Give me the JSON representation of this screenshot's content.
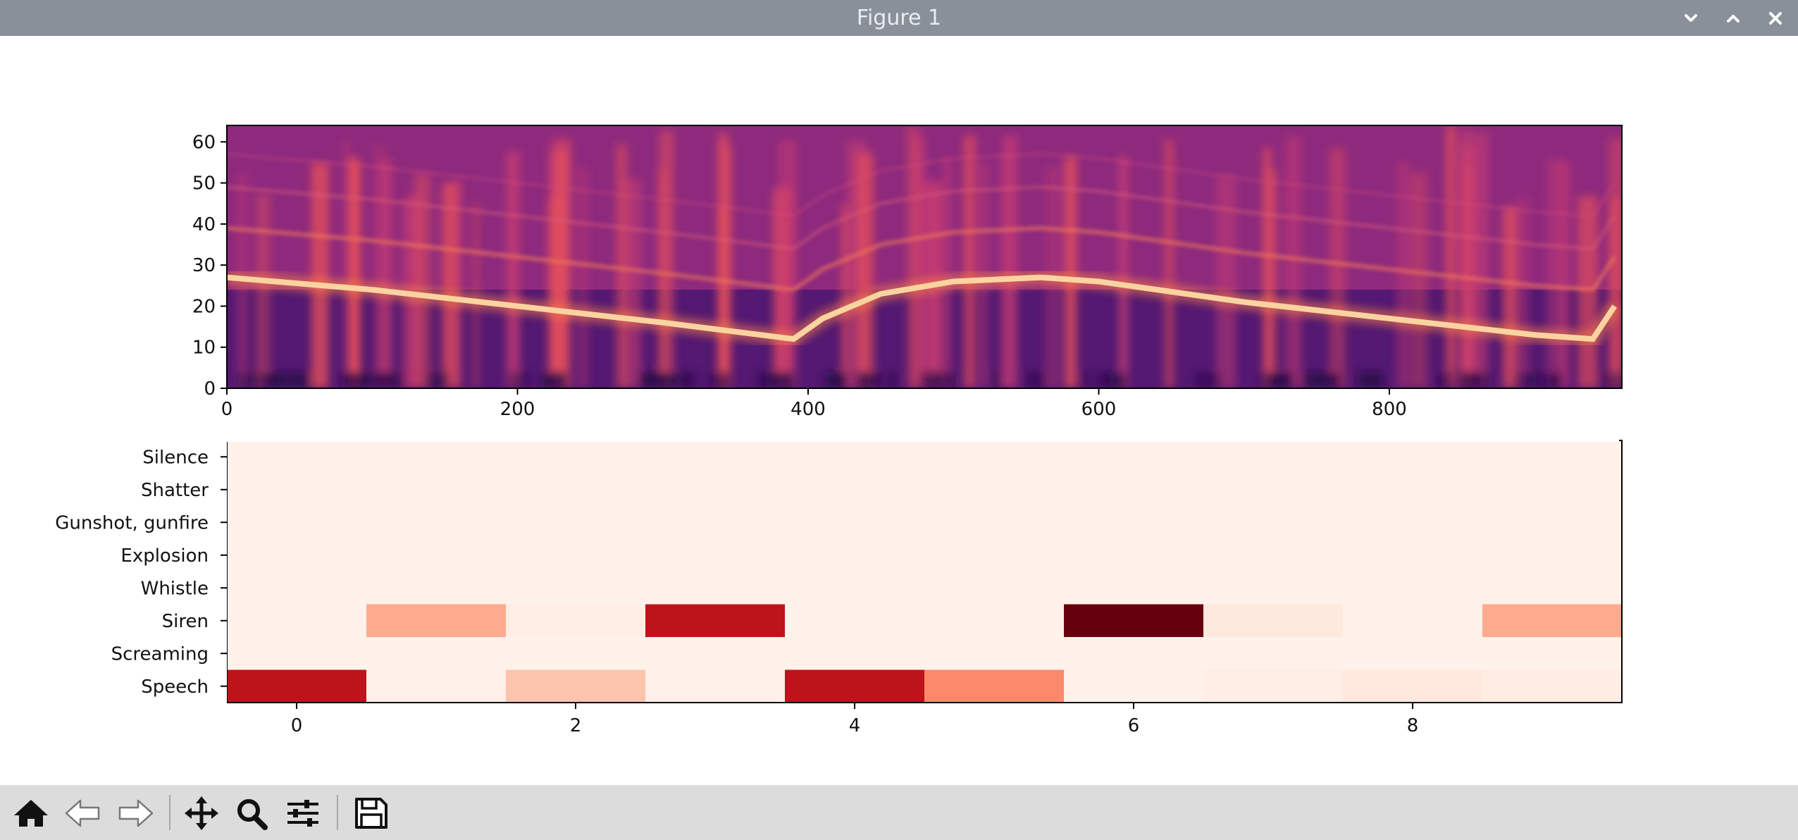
{
  "window": {
    "title": "Figure 1",
    "controls": {
      "minimize_icon": "chevron-down-icon",
      "maximize_icon": "chevron-up-icon",
      "close_icon": "close-icon"
    }
  },
  "toolbar": {
    "buttons": [
      {
        "name": "home-button",
        "icon": "home-icon"
      },
      {
        "name": "back-button",
        "icon": "arrow-left-icon"
      },
      {
        "name": "forward-button",
        "icon": "arrow-right-icon"
      },
      {
        "name": "pan-button",
        "icon": "move-icon"
      },
      {
        "name": "zoom-button",
        "icon": "magnifier-icon"
      },
      {
        "name": "configure-subplots-button",
        "icon": "sliders-icon"
      },
      {
        "name": "save-button",
        "icon": "floppy-disk-icon"
      }
    ]
  },
  "chart_data": [
    {
      "type": "heatmap",
      "title": "",
      "xlabel": "",
      "ylabel": "",
      "xlim": [
        0,
        960
      ],
      "ylim": [
        0,
        64
      ],
      "xticks": [
        0,
        200,
        400,
        600,
        800
      ],
      "yticks": [
        0,
        10,
        20,
        30,
        40,
        50,
        60
      ],
      "colormap": "magma",
      "content": "log-mel spectrogram, 960 frames x 64 mel bins",
      "dominant_contour": {
        "x": [
          0,
          100,
          200,
          300,
          390,
          410,
          450,
          500,
          560,
          600,
          700,
          800,
          900,
          940,
          955
        ],
        "y": [
          27,
          24,
          20,
          16,
          12,
          17,
          23,
          26,
          27,
          26,
          21,
          17,
          13,
          12,
          20
        ]
      },
      "grid": false
    },
    {
      "type": "heatmap",
      "title": "",
      "xlabel": "",
      "ylabel": "",
      "xlim": [
        -0.5,
        9.5
      ],
      "xticks": [
        0,
        2,
        4,
        6,
        8
      ],
      "colormap": "Reds",
      "vmin": 0,
      "vmax": 1,
      "categories": [
        "Silence",
        "Shatter",
        "Gunshot, gunfire",
        "Explosion",
        "Whistle",
        "Siren",
        "Screaming",
        "Speech"
      ],
      "x": [
        0,
        1,
        2,
        3,
        4,
        5,
        6,
        7,
        8,
        9
      ],
      "series": [
        {
          "name": "Silence",
          "values": [
            0.02,
            0.02,
            0.02,
            0.02,
            0.02,
            0.02,
            0.02,
            0.02,
            0.02,
            0.02
          ]
        },
        {
          "name": "Shatter",
          "values": [
            0.02,
            0.02,
            0.02,
            0.02,
            0.02,
            0.02,
            0.02,
            0.02,
            0.02,
            0.02
          ]
        },
        {
          "name": "Gunshot, gunfire",
          "values": [
            0.02,
            0.02,
            0.02,
            0.02,
            0.02,
            0.02,
            0.02,
            0.02,
            0.02,
            0.02
          ]
        },
        {
          "name": "Explosion",
          "values": [
            0.02,
            0.02,
            0.02,
            0.02,
            0.02,
            0.02,
            0.02,
            0.02,
            0.03,
            0.03
          ]
        },
        {
          "name": "Whistle",
          "values": [
            0.02,
            0.02,
            0.02,
            0.02,
            0.02,
            0.02,
            0.02,
            0.02,
            0.02,
            0.03
          ]
        },
        {
          "name": "Siren",
          "values": [
            0.02,
            0.3,
            0.04,
            0.8,
            0.02,
            0.02,
            1.0,
            0.07,
            0.02,
            0.3
          ]
        },
        {
          "name": "Screaming",
          "values": [
            0.02,
            0.02,
            0.02,
            0.02,
            0.02,
            0.02,
            0.02,
            0.02,
            0.02,
            0.02
          ]
        },
        {
          "name": "Speech",
          "values": [
            0.8,
            0.03,
            0.22,
            0.03,
            0.8,
            0.4,
            0.02,
            0.04,
            0.08,
            0.05
          ]
        }
      ],
      "grid": false
    }
  ]
}
